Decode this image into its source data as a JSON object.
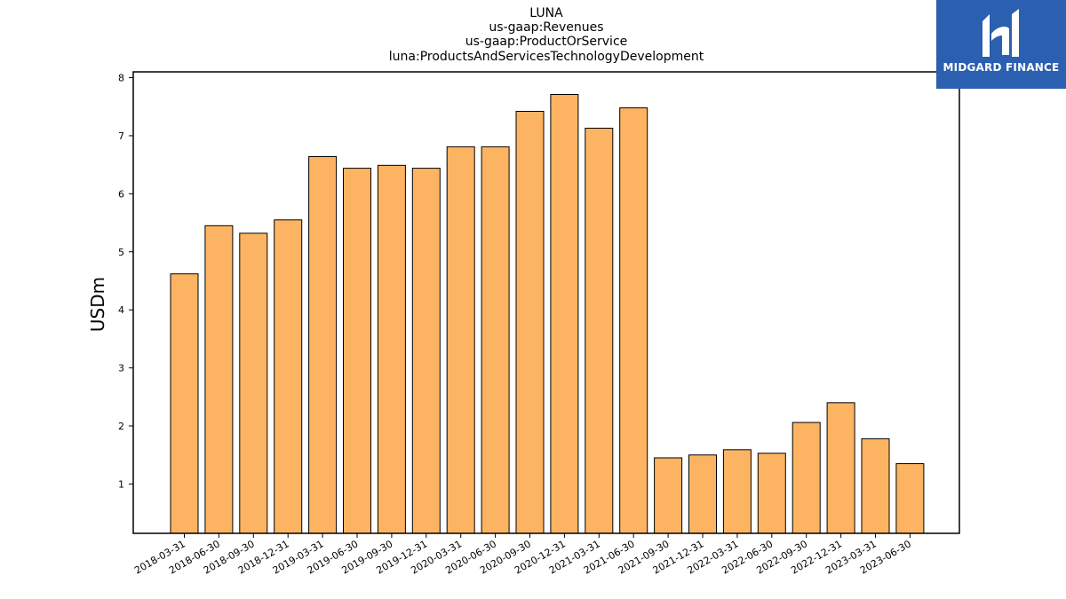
{
  "chart_data": {
    "type": "bar",
    "title_lines": [
      "LUNA",
      "us-gaap:Revenues",
      "us-gaap:ProductOrService",
      "luna:ProductsAndServicesTechnologyDevelopment"
    ],
    "xlabel": "",
    "ylabel": "USDm",
    "ylim": [
      0.15,
      8.1
    ],
    "yticks": [
      1,
      2,
      3,
      4,
      5,
      6,
      7,
      8
    ],
    "grid": false,
    "bar_color": "#fdb462",
    "categories": [
      "2018-03-31",
      "2018-06-30",
      "2018-09-30",
      "2018-12-31",
      "2019-03-31",
      "2019-06-30",
      "2019-09-30",
      "2019-12-31",
      "2020-03-31",
      "2020-06-30",
      "2020-09-30",
      "2020-12-31",
      "2021-03-31",
      "2021-06-30",
      "2021-09-30",
      "2021-12-31",
      "2022-03-31",
      "2022-06-30",
      "2022-09-30",
      "2022-12-31",
      "2023-03-31",
      "2023-06-30"
    ],
    "values": [
      4.62,
      5.45,
      5.32,
      5.55,
      6.64,
      6.44,
      6.49,
      6.44,
      6.81,
      6.81,
      7.42,
      7.71,
      7.13,
      7.48,
      1.45,
      1.5,
      1.59,
      1.53,
      2.06,
      2.4,
      1.78,
      1.35
    ]
  },
  "logo": {
    "text": "MIDGARD FINANCE",
    "bg_color": "#2b5fb0"
  }
}
